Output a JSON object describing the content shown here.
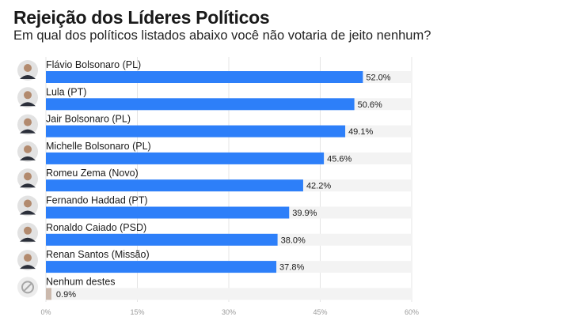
{
  "title": "Rejeição dos Líderes Políticos",
  "subtitle": "Em qual dos políticos listados abaixo você não votaria de jeito nenhum?",
  "chart_data": {
    "type": "bar",
    "orientation": "horizontal",
    "categories": [
      "Flávio Bolsonaro (PL)",
      "Lula (PT)",
      "Jair Bolsonaro (PL)",
      "Michelle Bolsonaro (PL)",
      "Romeu Zema (Novo)",
      "Fernando Haddad (PT)",
      "Ronaldo Caiado (PSD)",
      "Renan Santos (Missão)",
      "Nenhum destes"
    ],
    "values": [
      52.0,
      50.6,
      49.1,
      45.6,
      42.2,
      39.9,
      38.0,
      37.8,
      0.9
    ],
    "value_labels": [
      "52.0%",
      "50.6%",
      "49.1%",
      "45.6%",
      "42.2%",
      "39.9%",
      "38.0%",
      "37.8%",
      "0.9%"
    ],
    "xlim": [
      0,
      60
    ],
    "x_ticks": [
      0,
      15,
      30,
      45,
      60
    ],
    "x_tick_labels": [
      "0%",
      "15%",
      "30%",
      "45%",
      "60%"
    ],
    "grid": true,
    "colors": {
      "bar": "#2d7ff9",
      "bar_none": "#cbb9ad",
      "track": "#f3f3f3",
      "grid": "#e4e4e4"
    }
  },
  "icons": [
    "avatar-flavio-bolsonaro",
    "avatar-lula",
    "avatar-jair-bolsonaro",
    "avatar-michelle-bolsonaro",
    "avatar-romeu-zema",
    "avatar-fernando-haddad",
    "avatar-ronaldo-caiado",
    "avatar-renan-santos",
    "none-icon"
  ]
}
